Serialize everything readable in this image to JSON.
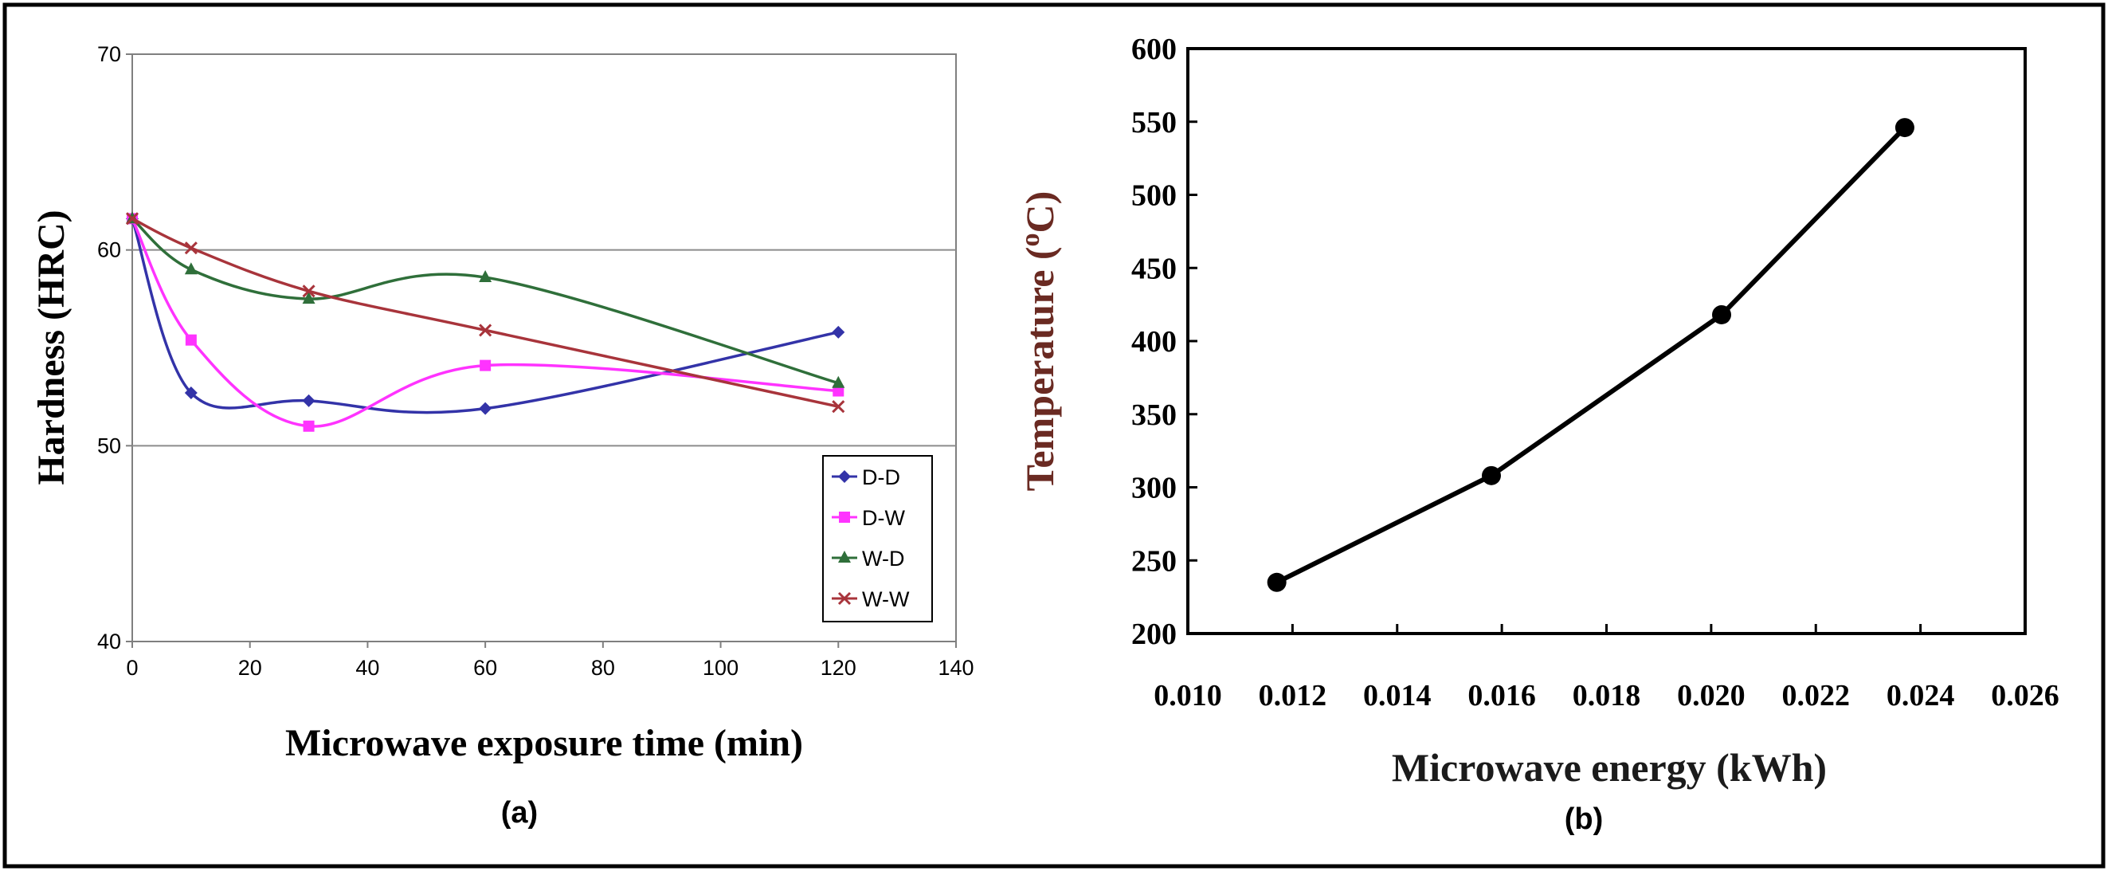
{
  "chart_data": [
    {
      "type": "line",
      "panel_label": "(a)",
      "xlabel": "Microwave exposure time (min)",
      "ylabel": "Hardness (HRC)",
      "xlim": [
        0,
        140
      ],
      "ylim": [
        40,
        70
      ],
      "xticks": [
        "0",
        "20",
        "40",
        "60",
        "80",
        "100",
        "120",
        "140"
      ],
      "yticks": [
        "40",
        "50",
        "60",
        "70"
      ],
      "grid": "horizontal at 50 and 60",
      "legend_position": "bottom-right",
      "x": [
        0,
        10,
        30,
        60,
        120
      ],
      "series": [
        {
          "name": "D-D",
          "color": "#3333a8",
          "marker": "diamond",
          "values": [
            61.6,
            52.7,
            52.3,
            51.9,
            55.8
          ]
        },
        {
          "name": "D-W",
          "color": "#ff33ff",
          "marker": "square",
          "values": [
            61.6,
            55.4,
            51.0,
            54.1,
            52.8
          ]
        },
        {
          "name": "W-D",
          "color": "#2f6f3a",
          "marker": "triangle",
          "values": [
            61.6,
            59.0,
            57.5,
            58.6,
            53.2
          ]
        },
        {
          "name": "W-W",
          "color": "#a8343b",
          "marker": "x",
          "values": [
            61.6,
            60.1,
            57.9,
            55.9,
            52.0
          ]
        }
      ]
    },
    {
      "type": "line",
      "panel_label": "(b)",
      "xlabel": "Microwave energy (kWh)",
      "ylabel_main": "Temperature (",
      "ylabel_sup": "o",
      "ylabel_end": "C)",
      "xlim": [
        0.01,
        0.026
      ],
      "ylim": [
        200,
        600
      ],
      "xticks": [
        "0.010",
        "0.012",
        "0.014",
        "0.016",
        "0.018",
        "0.020",
        "0.022",
        "0.024",
        "0.026"
      ],
      "yticks": [
        "200",
        "250",
        "300",
        "350",
        "400",
        "450",
        "500",
        "550",
        "600"
      ],
      "grid": "off",
      "x": [
        0.0117,
        0.0158,
        0.0202,
        0.0237
      ],
      "values": [
        235,
        308,
        418,
        546
      ]
    }
  ]
}
